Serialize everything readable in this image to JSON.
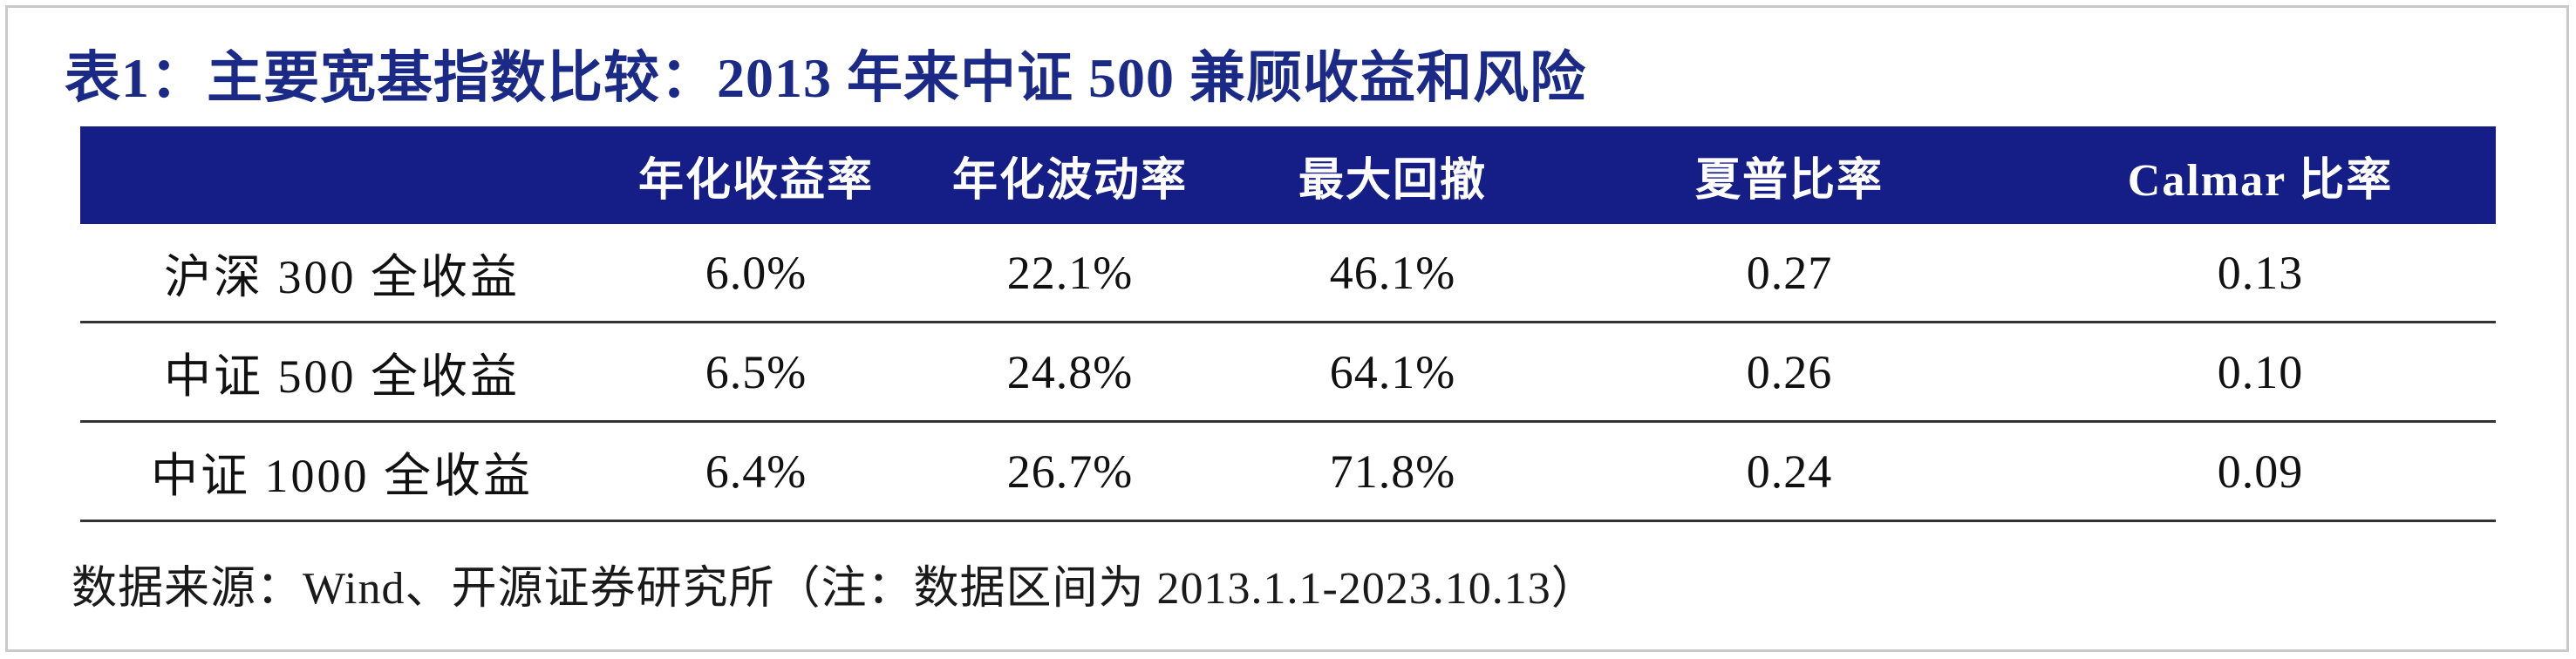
{
  "title": "表1：主要宽基指数比较：2013 年来中证 500 兼顾收益和风险",
  "table": {
    "headers": [
      "",
      "年化收益率",
      "年化波动率",
      "最大回撤",
      "夏普比率",
      "Calmar 比率"
    ],
    "rows": [
      [
        "沪深 300 全收益",
        "6.0%",
        "22.1%",
        "46.1%",
        "0.27",
        "0.13"
      ],
      [
        "中证 500 全收益",
        "6.5%",
        "24.8%",
        "64.1%",
        "0.26",
        "0.10"
      ],
      [
        "中证 1000 全收益",
        "6.4%",
        "26.7%",
        "71.8%",
        "0.24",
        "0.09"
      ]
    ]
  },
  "source": "数据来源：Wind、开源证券研究所（注：数据区间为 2013.1.1-2023.10.13）",
  "colors": {
    "title": "#1a2a86",
    "header_bg": "#151d86",
    "header_text": "#ffffff",
    "rule": "#333333"
  }
}
